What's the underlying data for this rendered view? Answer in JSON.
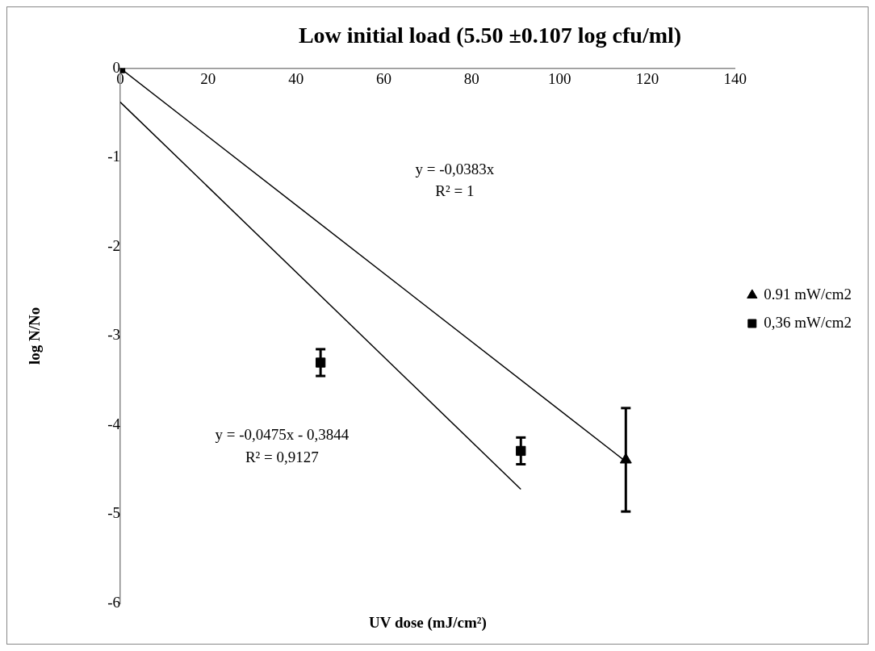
{
  "chart_data": {
    "type": "scatter",
    "title": "Low initial load (5.50 ±0.107 log cfu/ml)",
    "xlabel": "UV dose (mJ/cm²)",
    "ylabel": "log N/No",
    "xlim": [
      0,
      140
    ],
    "xticks": [
      0,
      20,
      40,
      60,
      80,
      100,
      120,
      140
    ],
    "ylim": [
      -6,
      0
    ],
    "yticks": [
      -6,
      -5,
      -4,
      -3,
      -2,
      -1,
      0
    ],
    "grid": false,
    "legend": "right",
    "series": [
      {
        "type": "line",
        "color": "#000000",
        "marker": "none",
        "x": [
          0,
          115.1
        ],
        "values": [
          0,
          -4.41
        ]
      },
      {
        "type": "line",
        "color": "#000000",
        "marker": "none",
        "x": [
          0,
          91.2
        ],
        "values": [
          -0.38,
          -4.72
        ]
      },
      {
        "name": "0.91 mW/cm2",
        "color": "#000000",
        "marker": "triangle",
        "x": [
          115.1
        ],
        "values": [
          -4.39
        ],
        "errors": [
          0.58
        ]
      },
      {
        "name": "0,36 mW/cm2",
        "color": "#000000",
        "marker": "square",
        "x": [
          0,
          45.6,
          91.2
        ],
        "values": [
          0,
          -3.3,
          -4.29
        ],
        "errors": [
          null,
          0.15,
          0.15
        ]
      }
    ],
    "annotations": [
      "y = -0,0383x",
      "R² = 1",
      "y = -0,0475x - 0,3844",
      "R² = 0,9127"
    ]
  }
}
